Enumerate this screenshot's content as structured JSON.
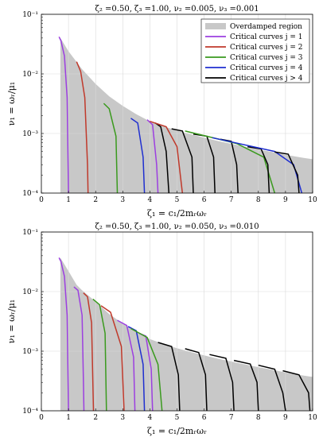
{
  "chart_data": [
    {
      "type": "line",
      "title": "ζ₂ =0.50, ζ₃ =1.00, ν₂ =0.005, ν₃ =0.001",
      "xlabel": "ζ₁ = c₁/2mᵣωᵣ",
      "ylabel": "ν₁ = ωᵣ/μ₁",
      "x_ticks": [
        "0",
        "1",
        "2",
        "3",
        "4",
        "5",
        "6",
        "7",
        "8",
        "9",
        "10"
      ],
      "y_ticks": [
        "10⁻⁴",
        "10⁻³",
        "10⁻²",
        "10⁻¹"
      ],
      "xlim": [
        0,
        10
      ],
      "ylim": [
        0.0001,
        0.1
      ],
      "yscale": "log",
      "grid": true,
      "legend_position": "top-right",
      "legend": [
        {
          "label": "Overdamped region",
          "color": "#c8c8c8"
        },
        {
          "label": "Critical curves j = 1",
          "color": "#9c3fe0"
        },
        {
          "label": "Critical curves j = 2",
          "color": "#c0392b"
        },
        {
          "label": "Critical curves j = 3",
          "color": "#3a9a1e"
        },
        {
          "label": "Critical curves j = 4",
          "color": "#1f2fd0"
        },
        {
          "label": "Critical curves j > 4",
          "color": "#000000"
        }
      ],
      "region_top": [
        [
          0.7,
          0.04
        ],
        [
          1.0,
          0.024
        ],
        [
          1.5,
          0.012
        ],
        [
          2.0,
          0.0068
        ],
        [
          2.5,
          0.0042
        ],
        [
          3.0,
          0.0029
        ],
        [
          3.5,
          0.0021
        ],
        [
          4.0,
          0.0016
        ],
        [
          4.5,
          0.00132
        ],
        [
          5.0,
          0.00112
        ],
        [
          5.5,
          0.00097
        ],
        [
          6.0,
          0.00085
        ],
        [
          6.5,
          0.00075
        ],
        [
          7.0,
          0.00067
        ],
        [
          7.5,
          0.0006
        ],
        [
          8.0,
          0.00054
        ],
        [
          8.5,
          0.00049
        ],
        [
          9.0,
          0.00044
        ],
        [
          9.5,
          0.0004
        ],
        [
          10.0,
          0.00037
        ]
      ],
      "series": [
        {
          "color": "#9c3fe0",
          "points": [
            [
              0.65,
              0.042
            ],
            [
              0.72,
              0.036
            ],
            [
              0.85,
              0.02
            ],
            [
              0.95,
              0.004
            ],
            [
              1.0,
              0.0001
            ]
          ]
        },
        {
          "color": "#c0392b",
          "points": [
            [
              1.3,
              0.016
            ],
            [
              1.45,
              0.011
            ],
            [
              1.6,
              0.004
            ],
            [
              1.7,
              0.0003
            ],
            [
              1.72,
              0.0001
            ]
          ]
        },
        {
          "color": "#3a9a1e",
          "points": [
            [
              2.3,
              0.0032
            ],
            [
              2.5,
              0.0026
            ],
            [
              2.75,
              0.0009
            ],
            [
              2.8,
              0.0001
            ]
          ]
        },
        {
          "color": "#1f2fd0",
          "points": [
            [
              3.3,
              0.0018
            ],
            [
              3.55,
              0.0015
            ],
            [
              3.75,
              0.0004
            ],
            [
              3.8,
              0.0001
            ]
          ]
        },
        {
          "color": "#9c3fe0",
          "points": [
            [
              3.9,
              0.0017
            ],
            [
              4.1,
              0.0014
            ],
            [
              4.25,
              0.0003
            ],
            [
              4.3,
              0.0001
            ]
          ]
        },
        {
          "color": "#000000",
          "points": [
            [
              4.2,
              0.0015
            ],
            [
              4.4,
              0.0013
            ],
            [
              4.6,
              0.0005
            ],
            [
              4.7,
              0.0001
            ]
          ]
        },
        {
          "color": "#c0392b",
          "points": [
            [
              4.0,
              0.0016
            ],
            [
              4.6,
              0.0013
            ],
            [
              5.0,
              0.0006
            ],
            [
              5.2,
              0.0001
            ]
          ]
        },
        {
          "color": "#000000",
          "points": [
            [
              4.8,
              0.0012
            ],
            [
              5.2,
              0.0011
            ],
            [
              5.55,
              0.0004
            ],
            [
              5.6,
              0.0001
            ]
          ]
        },
        {
          "color": "#000000",
          "points": [
            [
              5.6,
              0.00098
            ],
            [
              6.1,
              0.0009
            ],
            [
              6.35,
              0.0004
            ],
            [
              6.4,
              0.0001
            ]
          ]
        },
        {
          "color": "#000000",
          "points": [
            [
              6.6,
              0.0008
            ],
            [
              7.0,
              0.00074
            ],
            [
              7.2,
              0.0003
            ],
            [
              7.25,
              0.0001
            ]
          ]
        },
        {
          "color": "#3a9a1e",
          "points": [
            [
              5.3,
              0.0011
            ],
            [
              7.2,
              0.00068
            ],
            [
              8.2,
              0.0004
            ],
            [
              8.6,
              0.0001
            ]
          ]
        },
        {
          "color": "#000000",
          "points": [
            [
              7.6,
              0.0006
            ],
            [
              8.1,
              0.00055
            ],
            [
              8.35,
              0.0003
            ],
            [
              8.4,
              0.0001
            ]
          ]
        },
        {
          "color": "#1f2fd0",
          "points": [
            [
              6.3,
              0.00085
            ],
            [
              8.6,
              0.0005
            ],
            [
              9.3,
              0.0003
            ],
            [
              9.6,
              0.0001
            ]
          ]
        },
        {
          "color": "#000000",
          "points": [
            [
              8.6,
              0.00049
            ],
            [
              9.1,
              0.00045
            ],
            [
              9.45,
              0.0002
            ],
            [
              9.5,
              0.0001
            ]
          ]
        }
      ]
    },
    {
      "type": "line",
      "title": "ζ₂ =0.50, ζ₃ =1.00, ν₂ =0.050, ν₃ =0.010",
      "xlabel": "ζ₁ = c₁/2mᵣωᵣ",
      "ylabel": "ν₁ = ωᵣ/μ₁",
      "x_ticks": [
        "0",
        "1",
        "2",
        "3",
        "4",
        "5",
        "6",
        "7",
        "8",
        "9",
        "10"
      ],
      "y_ticks": [
        "10⁻⁴",
        "10⁻³",
        "10⁻²",
        "10⁻¹"
      ],
      "xlim": [
        0,
        10
      ],
      "ylim": [
        0.0001,
        0.1
      ],
      "yscale": "log",
      "grid": true,
      "region_top": [
        [
          0.7,
          0.037
        ],
        [
          1.0,
          0.022
        ],
        [
          1.3,
          0.013
        ],
        [
          1.5,
          0.0105
        ],
        [
          2.0,
          0.0068
        ],
        [
          2.5,
          0.0042
        ],
        [
          3.0,
          0.0029
        ],
        [
          3.5,
          0.0021
        ],
        [
          4.0,
          0.0016
        ],
        [
          4.5,
          0.00132
        ],
        [
          5.0,
          0.00112
        ],
        [
          5.5,
          0.00097
        ],
        [
          6.0,
          0.00085
        ],
        [
          6.5,
          0.00075
        ],
        [
          7.0,
          0.00067
        ],
        [
          7.5,
          0.0006
        ],
        [
          8.0,
          0.00054
        ],
        [
          8.5,
          0.00049
        ],
        [
          9.0,
          0.00044
        ],
        [
          9.5,
          0.0004
        ],
        [
          10.0,
          0.00037
        ]
      ],
      "series": [
        {
          "color": "#9c3fe0",
          "points": [
            [
              0.65,
              0.037
            ],
            [
              0.72,
              0.032
            ],
            [
              0.85,
              0.018
            ],
            [
              0.95,
              0.004
            ],
            [
              1.0,
              0.0001
            ]
          ]
        },
        {
          "color": "#9c3fe0",
          "points": [
            [
              1.2,
              0.012
            ],
            [
              1.35,
              0.0105
            ],
            [
              1.5,
              0.004
            ],
            [
              1.55,
              0.0003
            ],
            [
              1.57,
              0.0001
            ]
          ]
        },
        {
          "color": "#c0392b",
          "points": [
            [
              1.55,
              0.0095
            ],
            [
              1.7,
              0.0082
            ],
            [
              1.85,
              0.003
            ],
            [
              1.92,
              0.0001
            ]
          ]
        },
        {
          "color": "#3a9a1e",
          "points": [
            [
              1.9,
              0.0075
            ],
            [
              2.15,
              0.006
            ],
            [
              2.35,
              0.002
            ],
            [
              2.4,
              0.0001
            ]
          ]
        },
        {
          "color": "#c0392b",
          "points": [
            [
              2.2,
              0.0058
            ],
            [
              2.55,
              0.0045
            ],
            [
              2.95,
              0.0012
            ],
            [
              3.05,
              0.0001
            ]
          ]
        },
        {
          "color": "#9c3fe0",
          "points": [
            [
              2.8,
              0.0033
            ],
            [
              3.15,
              0.0027
            ],
            [
              3.4,
              0.0008
            ],
            [
              3.45,
              0.0001
            ]
          ]
        },
        {
          "color": "#1f2fd0",
          "points": [
            [
              3.2,
              0.0026
            ],
            [
              3.5,
              0.0022
            ],
            [
              3.75,
              0.0006
            ],
            [
              3.8,
              0.0001
            ]
          ]
        },
        {
          "color": "#9c3fe0",
          "points": [
            [
              3.6,
              0.002
            ],
            [
              3.85,
              0.0018
            ],
            [
              4.05,
              0.0005
            ],
            [
              4.1,
              0.0001
            ]
          ]
        },
        {
          "color": "#3a9a1e",
          "points": [
            [
              3.3,
              0.0024
            ],
            [
              3.9,
              0.0017
            ],
            [
              4.3,
              0.0006
            ],
            [
              4.45,
              0.0001
            ]
          ]
        },
        {
          "color": "#000000",
          "points": [
            [
              4.3,
              0.0014
            ],
            [
              4.8,
              0.0012
            ],
            [
              5.05,
              0.0004
            ],
            [
              5.1,
              0.0001
            ]
          ]
        },
        {
          "color": "#000000",
          "points": [
            [
              5.3,
              0.0011
            ],
            [
              5.8,
              0.00095
            ],
            [
              6.05,
              0.0004
            ],
            [
              6.1,
              0.0001
            ]
          ]
        },
        {
          "color": "#000000",
          "points": [
            [
              6.2,
              0.00088
            ],
            [
              6.8,
              0.00076
            ],
            [
              7.05,
              0.0003
            ],
            [
              7.1,
              0.0001
            ]
          ]
        },
        {
          "color": "#000000",
          "points": [
            [
              7.1,
              0.0007
            ],
            [
              7.7,
              0.00061
            ],
            [
              7.95,
              0.0003
            ],
            [
              8.0,
              0.0001
            ]
          ]
        },
        {
          "color": "#000000",
          "points": [
            [
              8.0,
              0.00058
            ],
            [
              8.6,
              0.0005
            ],
            [
              8.9,
              0.0002
            ],
            [
              9.0,
              0.0001
            ]
          ]
        },
        {
          "color": "#000000",
          "points": [
            [
              8.9,
              0.00047
            ],
            [
              9.5,
              0.0004
            ],
            [
              9.85,
              0.0002
            ],
            [
              9.9,
              0.0001
            ]
          ]
        }
      ]
    }
  ]
}
